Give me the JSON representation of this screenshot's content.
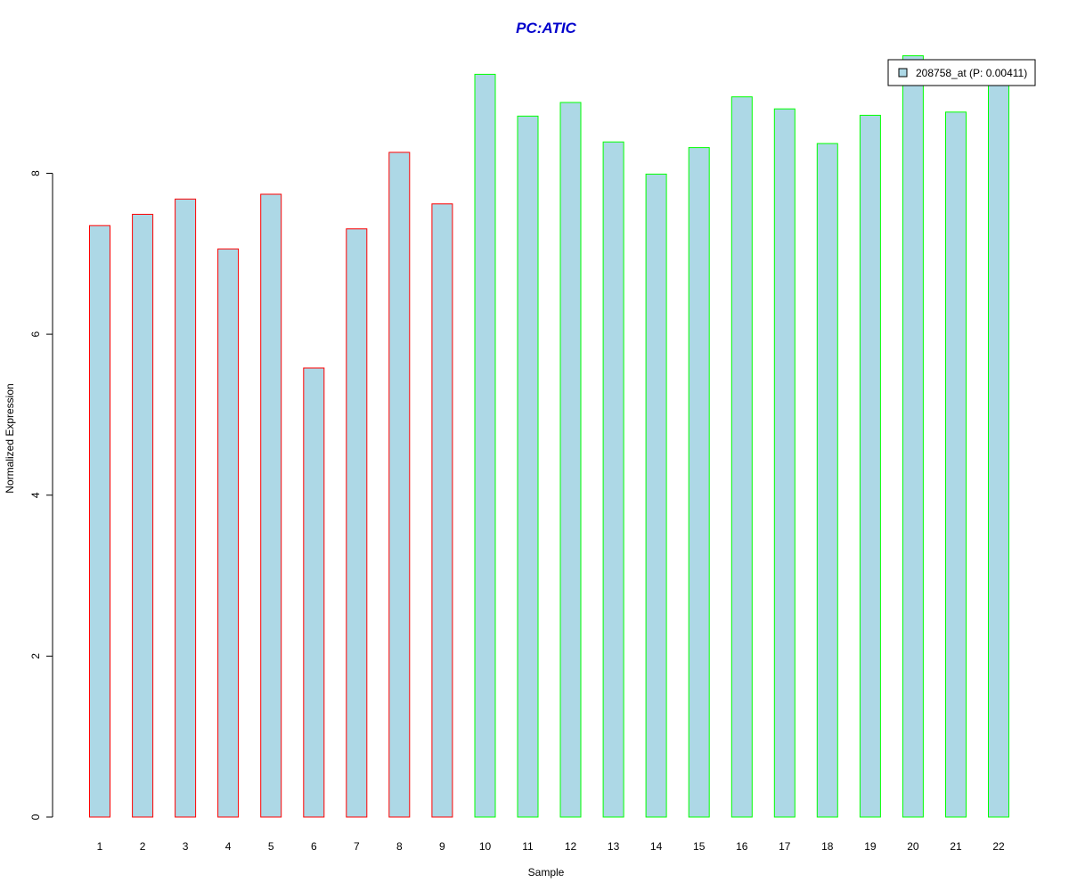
{
  "chart_data": {
    "type": "bar",
    "title": "PC:ATIC",
    "xlabel": "Sample",
    "ylabel": "Normalized Expression",
    "categories": [
      "1",
      "2",
      "3",
      "4",
      "5",
      "6",
      "7",
      "8",
      "9",
      "10",
      "11",
      "12",
      "13",
      "14",
      "15",
      "16",
      "17",
      "18",
      "19",
      "20",
      "21",
      "22"
    ],
    "values": [
      7.35,
      7.49,
      7.68,
      7.06,
      7.74,
      5.58,
      7.31,
      8.26,
      7.62,
      9.23,
      8.71,
      8.88,
      8.39,
      7.99,
      8.32,
      8.95,
      8.8,
      8.37,
      8.72,
      9.46,
      8.76,
      9.18
    ],
    "ylim": [
      0,
      9.5
    ],
    "yticks": [
      "0",
      "2",
      "4",
      "6",
      "8"
    ],
    "grid": false,
    "legend": {
      "position": "top-right",
      "entries": [
        {
          "label": "208758_at (P: 0.00411)"
        }
      ]
    },
    "colors": {
      "fill": "#add8e6",
      "group1_border": "#ff0000",
      "group2_border": "#00ff00",
      "title": "#0000cc"
    },
    "group1_count": 9
  }
}
